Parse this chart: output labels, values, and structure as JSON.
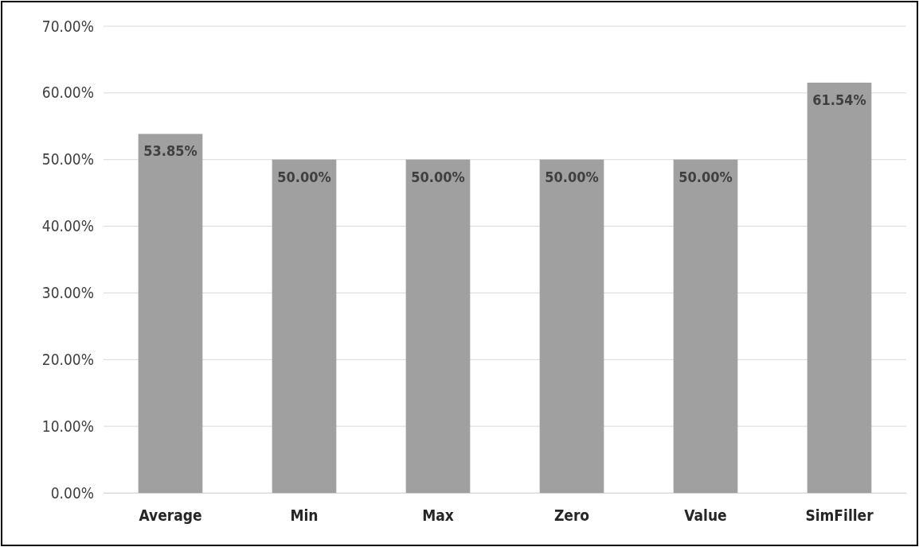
{
  "chart_data": {
    "type": "bar",
    "categories": [
      "Average",
      "Min",
      "Max",
      "Zero",
      "Value",
      "SimFiller"
    ],
    "values": [
      53.85,
      50,
      50,
      50,
      50,
      61.54
    ],
    "value_labels": [
      "53.85%",
      "50.00%",
      "50.00%",
      "50.00%",
      "50.00%",
      "61.54%"
    ],
    "color": "#a0a0a0",
    "ylim": [
      0,
      70
    ],
    "yticks": [
      {
        "value": 0,
        "label": "0.00%"
      },
      {
        "value": 10,
        "label": "10.00%"
      },
      {
        "value": 20,
        "label": "20.00%"
      },
      {
        "value": 30,
        "label": "30.00%"
      },
      {
        "value": 40,
        "label": "40.00%"
      },
      {
        "value": 50,
        "label": "50.00%"
      },
      {
        "value": 60,
        "label": "60.00%"
      },
      {
        "value": 70,
        "label": "70.00%"
      }
    ],
    "grid": "y"
  }
}
